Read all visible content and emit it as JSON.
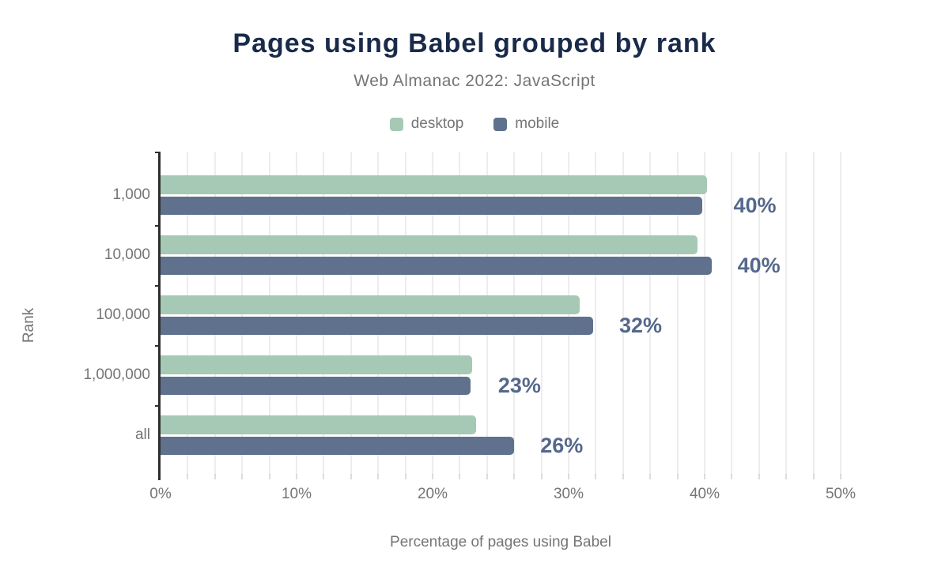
{
  "colors": {
    "title": "#1a2b4a",
    "muted_text": "#757575",
    "axis_line": "#2e2e2e",
    "gridline": "#ededed",
    "desktop_bar": "#a5c9b4",
    "mobile_bar": "#5f718d",
    "value_label": "#55688c",
    "background": "#ffffff"
  },
  "chart_data": {
    "type": "bar",
    "orientation": "horizontal",
    "title": "Pages using Babel grouped by rank",
    "subtitle": "Web Almanac 2022: JavaScript",
    "categories": [
      "1,000",
      "10,000",
      "100,000",
      "1,000,000",
      "all"
    ],
    "series": [
      {
        "name": "desktop",
        "color": "#a5c9b4",
        "values": [
          40.2,
          39.5,
          30.8,
          22.9,
          23.2
        ]
      },
      {
        "name": "mobile",
        "color": "#5f718d",
        "values": [
          39.8,
          40.5,
          31.8,
          22.8,
          26
        ]
      }
    ],
    "value_labels": [
      "40%",
      "40%",
      "32%",
      "23%",
      "26%"
    ],
    "xlabel": "Percentage of pages using Babel",
    "ylabel": "Rank",
    "xlim": [
      0,
      50
    ],
    "x_tick_values": [
      0,
      10,
      20,
      30,
      40,
      50
    ],
    "x_tick_labels": [
      "0%",
      "10%",
      "20%",
      "30%",
      "40%",
      "50%"
    ],
    "grid": {
      "axis": "x",
      "minor_step_pct": 2
    },
    "legend_position": "top"
  }
}
